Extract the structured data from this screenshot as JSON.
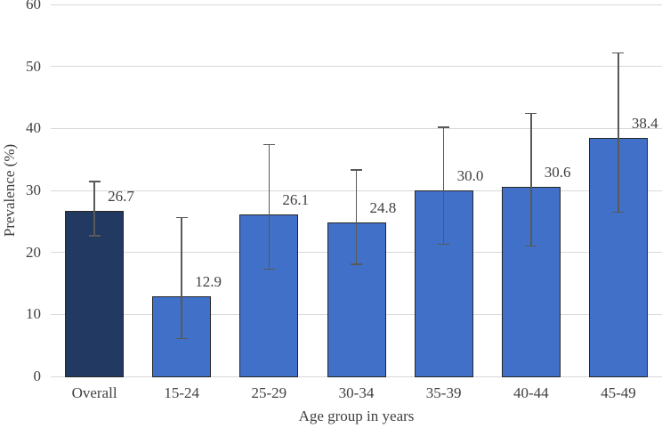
{
  "chart_data": {
    "type": "bar",
    "title": "",
    "xlabel": "Age group in years",
    "ylabel": "Prevalence (%)",
    "categories": [
      "Overall",
      "15-24",
      "25-29",
      "30-34",
      "35-39",
      "40-44",
      "45-49"
    ],
    "values": [
      26.7,
      12.9,
      26.1,
      24.8,
      30.0,
      30.6,
      38.4
    ],
    "value_labels": [
      "26.7",
      "12.9",
      "26.1",
      "24.8",
      "30.0",
      "30.6",
      "38.4"
    ],
    "error_low": [
      22.7,
      6.1,
      17.3,
      18.1,
      21.3,
      21.0,
      26.5
    ],
    "error_high": [
      31.4,
      25.6,
      37.4,
      33.3,
      40.2,
      42.4,
      52.2
    ],
    "ylim": [
      0,
      60
    ],
    "yticks": [
      0,
      10,
      20,
      30,
      40,
      50,
      60
    ],
    "grid": true,
    "legend": "none",
    "bar_colors": [
      "#223962",
      "#4170C8",
      "#4170C8",
      "#4170C8",
      "#4170C8",
      "#4170C8",
      "#4170C8"
    ]
  },
  "colors": {
    "overall_bar": "#223962",
    "age_group_bar": "#4170C8",
    "bar_border": "#262626",
    "error_bar": "#595959",
    "gridline": "#D9D9D9",
    "axis_text": "#404040",
    "background": "#FFFFFF"
  }
}
